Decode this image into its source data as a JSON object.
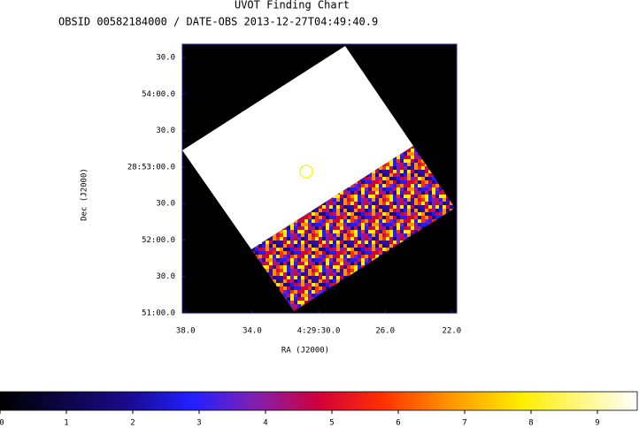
{
  "chart_data": {
    "type": "image",
    "title": "UVOT Finding Chart",
    "subtitle": "OBSID 00582184000 / DATE-OBS 2013-12-27T04:49:40.9",
    "x_label": "RA (J2000)",
    "y_label": "Dec (J2000)",
    "xlim": [
      38.2,
      21.7
    ],
    "xticks": [
      {
        "value": 38,
        "label": "38.0"
      },
      {
        "value": 34,
        "label": "34.0"
      },
      {
        "value": 30,
        "label": "4:29:30.0"
      },
      {
        "value": 26,
        "label": "26.0"
      },
      {
        "value": 22,
        "label": "22.0"
      }
    ],
    "ylim": [
      0,
      221
    ],
    "yticks": [
      {
        "value": 210,
        "label": "30.0"
      },
      {
        "value": 180,
        "label": "54:00.0"
      },
      {
        "value": 150,
        "label": "30.0"
      },
      {
        "value": 120,
        "label": "28:53:00.0"
      },
      {
        "value": 90,
        "label": "30.0"
      },
      {
        "value": 60,
        "label": "52:00.0"
      },
      {
        "value": 30,
        "label": "30.0"
      },
      {
        "value": 0,
        "label": "51:00.0"
      }
    ],
    "colorbar": {
      "lim": [
        0,
        9.6
      ],
      "ticks": [
        0,
        1,
        2,
        3,
        4,
        5,
        6,
        7,
        8,
        9
      ]
    }
  }
}
